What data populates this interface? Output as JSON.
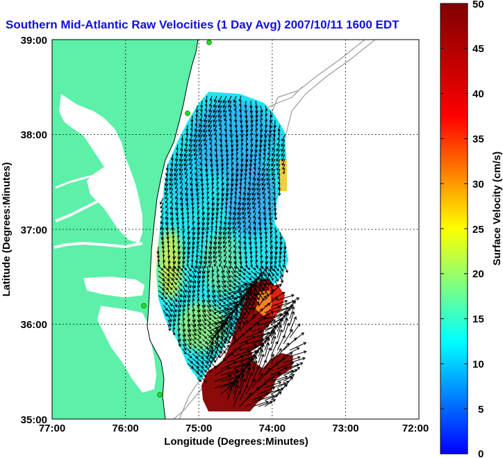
{
  "title": "Southern Mid-Atlantic Raw Velocities (1 Day Avg) 2007/10/11 1600 EDT",
  "xlabel": "Longitude (Degrees:Minutes)",
  "ylabel": "Latitude (Degrees:Minutes)",
  "x_ticks": [
    "77:00",
    "76:00",
    "75:00",
    "74:00",
    "73:00",
    "72:00"
  ],
  "y_ticks": [
    "39:00",
    "38:00",
    "37:00",
    "36:00",
    "35:00"
  ],
  "colorbar": {
    "label": "Surface Velocity (cm/s)",
    "ticks": [
      "50",
      "45",
      "40",
      "35",
      "30",
      "25",
      "20",
      "15",
      "10",
      "5",
      "0"
    ],
    "min": 0,
    "max": 50,
    "colormap": [
      "#0000ff",
      "#00ffff",
      "#ffff00",
      "#ff0000",
      "#800000"
    ]
  },
  "map": {
    "lon_range": [
      -77,
      -72
    ],
    "lat_range": [
      35,
      39
    ],
    "grid": true,
    "land_color": "#5cf0a8",
    "water_color": "#ffffff",
    "vector_color": "#000000",
    "station_color": "#22dd22"
  }
}
